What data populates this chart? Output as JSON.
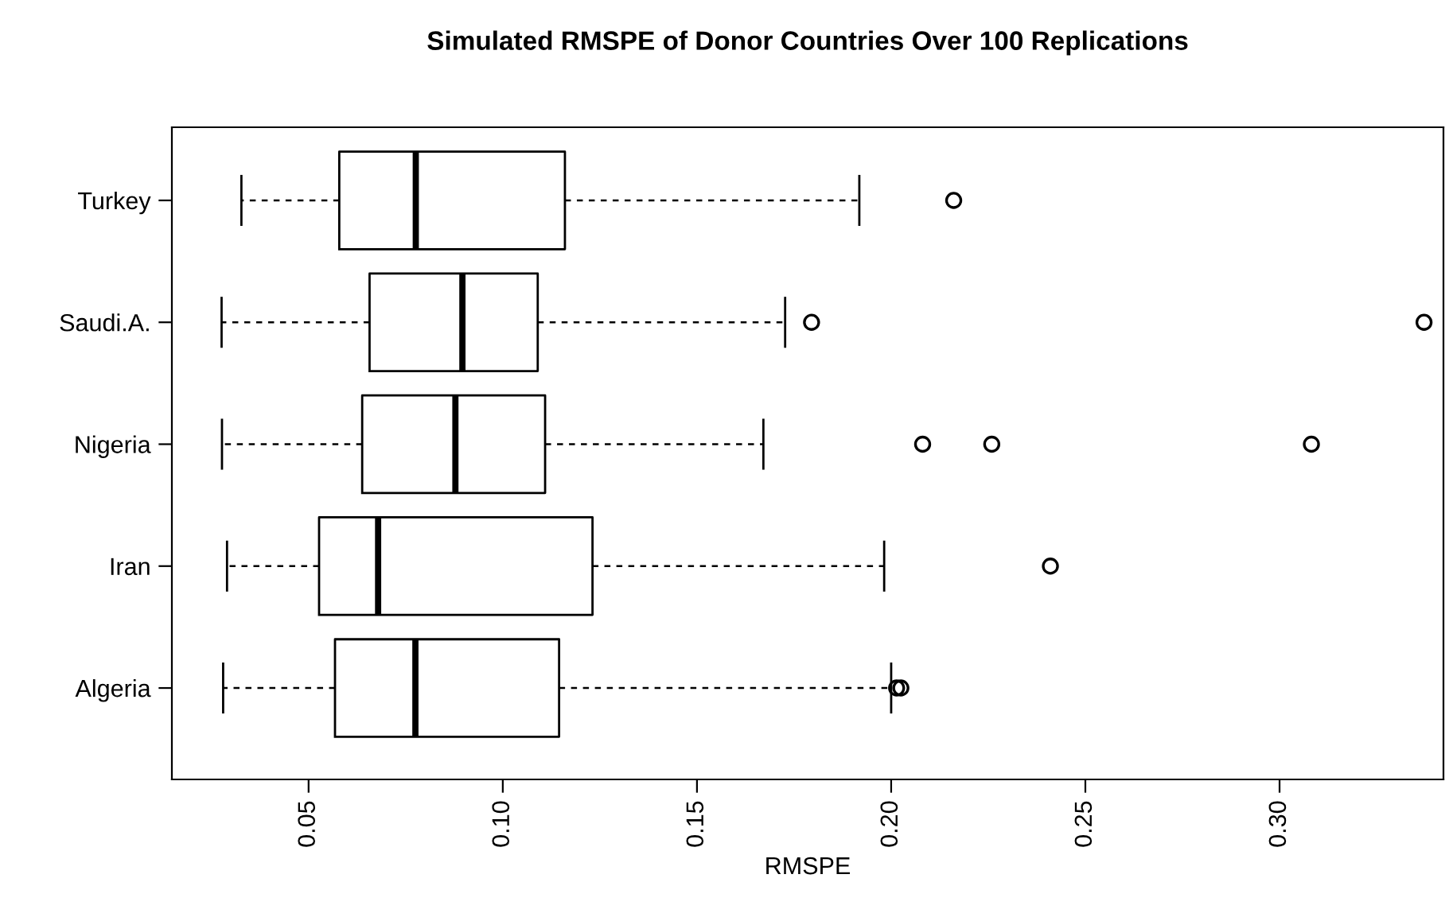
{
  "chart_data": {
    "type": "box",
    "title": "Simulated RMSPE of Donor Countries Over 100 Replications",
    "xlabel": "RMSPE",
    "orientation": "horizontal",
    "categories": [
      "Turkey",
      "Saudi.A.",
      "Nigeria",
      "Iran",
      "Algeria"
    ],
    "boxes": [
      {
        "low": 0.0327,
        "q1": 0.0579,
        "median": 0.0776,
        "q3": 0.116,
        "high": 0.1918,
        "outliers": [
          0.2161
        ]
      },
      {
        "low": 0.0276,
        "q1": 0.0657,
        "median": 0.0896,
        "q3": 0.109,
        "high": 0.1727,
        "outliers": [
          0.1795,
          0.3372
        ]
      },
      {
        "low": 0.0277,
        "q1": 0.0638,
        "median": 0.0878,
        "q3": 0.1109,
        "high": 0.1671,
        "outliers": [
          0.2081,
          0.2259,
          0.3082
        ]
      },
      {
        "low": 0.029,
        "q1": 0.0527,
        "median": 0.0679,
        "q3": 0.1231,
        "high": 0.1982,
        "outliers": [
          0.241
        ]
      },
      {
        "low": 0.028,
        "q1": 0.0568,
        "median": 0.0775,
        "q3": 0.1145,
        "high": 0.2,
        "outliers": [
          0.2014,
          0.2025
        ]
      }
    ],
    "xlim": [
      0.0148,
      0.3422
    ],
    "xticks": [
      {
        "value": 0.05,
        "label": "0.05"
      },
      {
        "value": 0.1,
        "label": "0.10"
      },
      {
        "value": 0.15,
        "label": "0.15"
      },
      {
        "value": 0.2,
        "label": "0.20"
      },
      {
        "value": 0.25,
        "label": "0.25"
      },
      {
        "value": 0.3,
        "label": "0.30"
      }
    ],
    "grid": false,
    "marker": "circle",
    "line_style": "dashed"
  }
}
